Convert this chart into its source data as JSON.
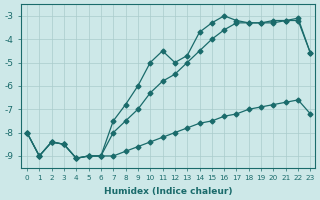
{
  "bg_color": "#cde8e8",
  "grid_color": "#aacccc",
  "line_color": "#1a6b6b",
  "xlabel": "Humidex (Indice chaleur)",
  "xlim_min": -0.5,
  "xlim_max": 23.4,
  "ylim_min": -9.5,
  "ylim_max": -2.5,
  "xticks": [
    0,
    1,
    2,
    3,
    4,
    5,
    6,
    7,
    8,
    9,
    10,
    11,
    12,
    13,
    14,
    15,
    16,
    17,
    18,
    19,
    20,
    21,
    22,
    23
  ],
  "yticks": [
    -9,
    -8,
    -7,
    -6,
    -5,
    -4,
    -3
  ],
  "line1_x": [
    0,
    1,
    2,
    3,
    4,
    5,
    6,
    7,
    8,
    9,
    10,
    11,
    12,
    13,
    14,
    15,
    16,
    17,
    18,
    19,
    20,
    21,
    22,
    23
  ],
  "line1_y": [
    -8.0,
    -9.0,
    -8.4,
    -8.5,
    -9.1,
    -9.0,
    -9.0,
    -9.0,
    -8.8,
    -8.6,
    -8.4,
    -8.2,
    -8.0,
    -7.8,
    -7.6,
    -7.5,
    -7.3,
    -7.2,
    -7.0,
    -6.9,
    -6.8,
    -6.7,
    -6.6,
    -7.2
  ],
  "line2_x": [
    0,
    1,
    2,
    3,
    4,
    5,
    6,
    7,
    8,
    9,
    10,
    11,
    12,
    13,
    14,
    15,
    16,
    17,
    18,
    19,
    20,
    21,
    22,
    23
  ],
  "line2_y": [
    -8.0,
    -9.0,
    -8.4,
    -8.5,
    -9.1,
    -9.0,
    -9.0,
    -8.0,
    -7.5,
    -7.0,
    -6.3,
    -5.8,
    -5.5,
    -5.0,
    -4.5,
    -4.0,
    -3.6,
    -3.3,
    -3.3,
    -3.3,
    -3.3,
    -3.2,
    -3.2,
    -4.6
  ],
  "line3_x": [
    0,
    1,
    2,
    3,
    4,
    5,
    6,
    7,
    8,
    9,
    10,
    11,
    12,
    13,
    14,
    15,
    16,
    17,
    18,
    19,
    20,
    21,
    22,
    23
  ],
  "line3_y": [
    -8.0,
    -9.0,
    -8.4,
    -8.5,
    -9.1,
    -9.0,
    -9.0,
    -7.5,
    -6.8,
    -6.0,
    -5.0,
    -4.5,
    -5.0,
    -4.7,
    -3.7,
    -3.3,
    -3.0,
    -3.2,
    -3.3,
    -3.3,
    -3.2,
    -3.2,
    -3.1,
    -4.6
  ]
}
